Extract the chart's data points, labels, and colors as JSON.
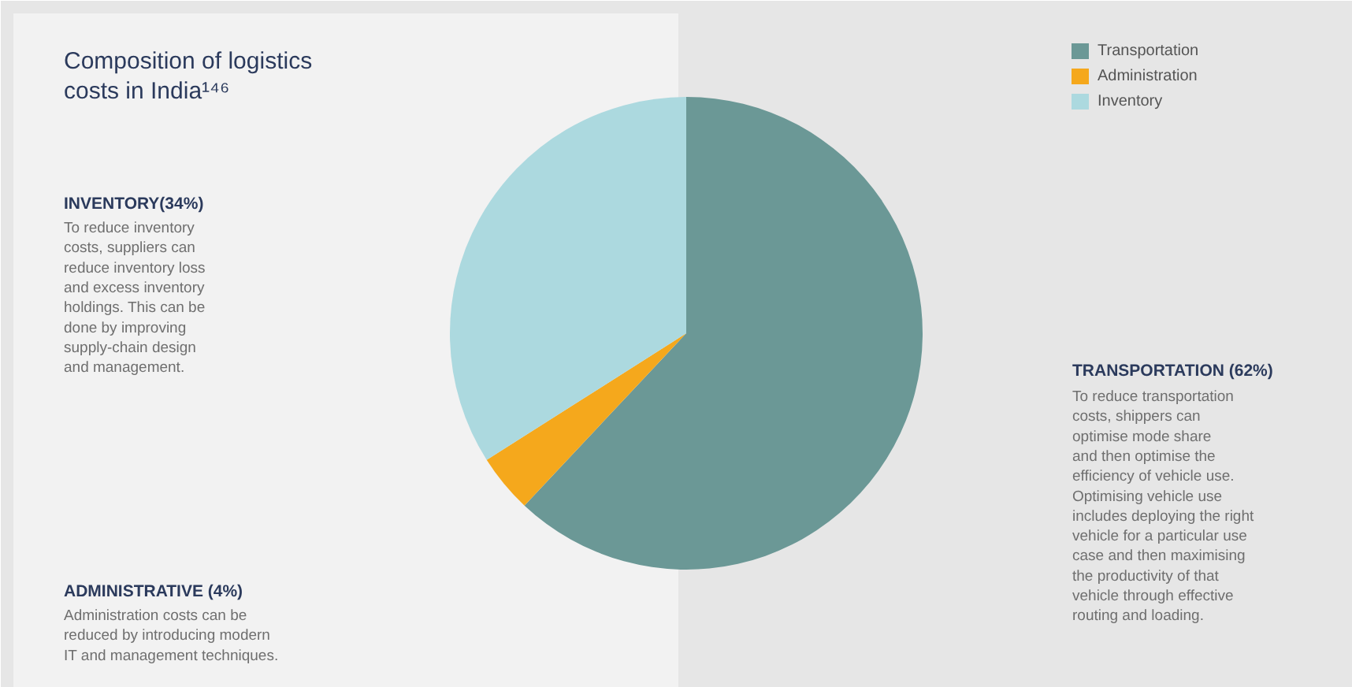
{
  "chart_data": {
    "type": "pie",
    "title": "Composition of logistics costs in India¹⁴⁶",
    "categories": [
      "Transportation",
      "Administration",
      "Inventory"
    ],
    "values": [
      62,
      4,
      34
    ],
    "colors": [
      "#6b9896",
      "#f5a81c",
      "#acd9df"
    ],
    "legend": "top right",
    "annotations": [
      "INVENTORY(34%)",
      "To reduce inventory\ncosts, suppliers can\nreduce inventory loss\nand excess inventory\nholdings. This can be\ndone by improving\nsupply-chain design\nand management.",
      "TRANSPORTATION (62%)",
      "To reduce transportation\ncosts, shippers can\noptimise mode share\nand then optimise the\nefficiency of vehicle use.\nOptimising vehicle use\nincludes deploying the right\nvehicle for a particular use\ncase and then maximising\nthe productivity of that\nvehicle through effective\nrouting and loading.",
      "ADMINISTRATIVE (4%)",
      "Administration costs can be\nreduced by introducing modern\nIT and management techniques."
    ]
  }
}
